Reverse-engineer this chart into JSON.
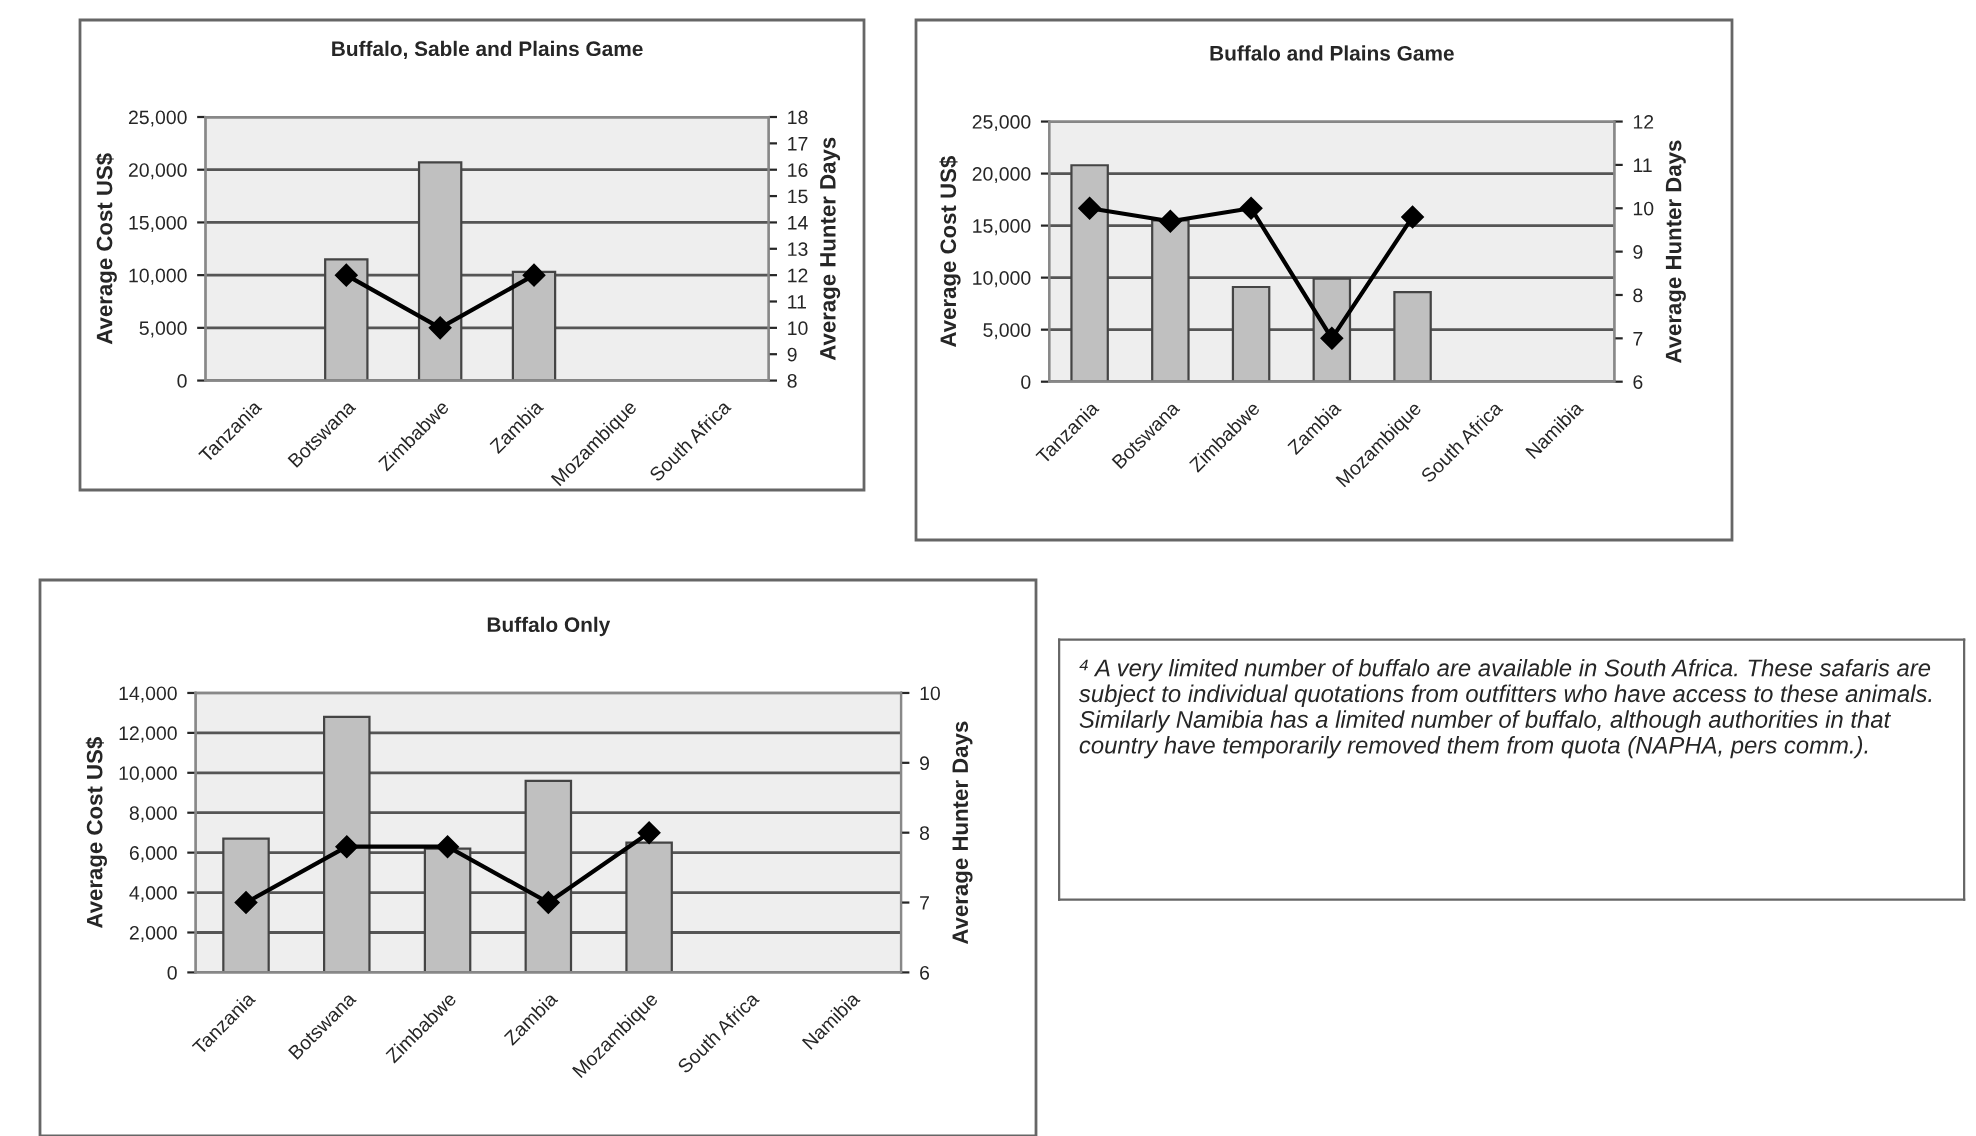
{
  "chart_data": [
    {
      "type": "bar",
      "title": "Buffalo, Sable and Plains Game",
      "categories": [
        "Tanzania",
        "Botswana",
        "Zimbabwe",
        "Zambia",
        "Mozambique",
        "South Africa"
      ],
      "series": [
        {
          "type": "bar",
          "color": "#c0c0c0",
          "values": [
            null,
            11500,
            20700,
            10300,
            null,
            null
          ]
        },
        {
          "type": "line",
          "axis": "y2",
          "color": "#000000",
          "values": [
            null,
            12,
            10,
            12,
            null,
            null
          ]
        }
      ],
      "ylabel": "Average Cost US$",
      "y2label": "Average Hunter Days",
      "ylim": [
        0,
        25000
      ],
      "yticks": [
        0,
        {
          "value": 5000,
          "label": "5,000"
        },
        {
          "value": 10000,
          "label": "10,000"
        },
        {
          "value": 15000,
          "label": "15,000"
        },
        {
          "value": 20000,
          "label": "20,000"
        },
        {
          "value": 25000,
          "label": "25,000"
        }
      ],
      "y2lim": [
        8,
        18
      ],
      "y2ticks": [
        8,
        9,
        10,
        11,
        12,
        13,
        14,
        15,
        16,
        17,
        18
      ],
      "grid": "y",
      "marker": "diamond"
    },
    {
      "type": "bar",
      "title": "Buffalo and Plains Game",
      "categories": [
        "Tanzania",
        "Botswana",
        "Zimbabwe",
        "Zambia",
        "Mozambique",
        "South Africa",
        "Namibia"
      ],
      "series": [
        {
          "type": "bar",
          "color": "#c0c0c0",
          "values": [
            20800,
            15500,
            9100,
            9900,
            8600,
            null,
            null
          ]
        },
        {
          "type": "line",
          "axis": "y2",
          "color": "#000000",
          "values": [
            10,
            9.7,
            10,
            7,
            9.8,
            null,
            null
          ]
        }
      ],
      "ylabel": "Average Cost US$",
      "y2label": "Average Hunter Days",
      "ylim": [
        0,
        25000
      ],
      "yticks": [
        0,
        {
          "value": 5000,
          "label": "5,000"
        },
        {
          "value": 10000,
          "label": "10,000"
        },
        {
          "value": 15000,
          "label": "15,000"
        },
        {
          "value": 20000,
          "label": "20,000"
        },
        {
          "value": 25000,
          "label": "25,000"
        }
      ],
      "y2lim": [
        6,
        12
      ],
      "y2ticks": [
        6,
        7,
        8,
        9,
        10,
        11,
        12
      ],
      "grid": "y",
      "marker": "diamond"
    },
    {
      "type": "bar",
      "title": "Buffalo Only",
      "categories": [
        "Tanzania",
        "Botswana",
        "Zimbabwe",
        "Zambia",
        "Mozambique",
        "South Africa",
        "Namibia"
      ],
      "series": [
        {
          "type": "bar",
          "color": "#c0c0c0",
          "values": [
            6700,
            12800,
            6200,
            9600,
            6500,
            null,
            null
          ]
        },
        {
          "type": "line",
          "axis": "y2",
          "color": "#000000",
          "values": [
            7,
            7.8,
            7.8,
            7,
            8,
            null,
            null
          ]
        }
      ],
      "ylabel": "Average Cost US$",
      "y2label": "Average Hunter Days",
      "ylim": [
        0,
        14000
      ],
      "yticks": [
        0,
        {
          "value": 2000,
          "label": "2,000"
        },
        {
          "value": 4000,
          "label": "4,000"
        },
        {
          "value": 6000,
          "label": "6,000"
        },
        {
          "value": 8000,
          "label": "8,000"
        },
        {
          "value": 10000,
          "label": "10,000"
        },
        {
          "value": 12000,
          "label": "12,000"
        },
        {
          "value": 14000,
          "label": "14,000"
        }
      ],
      "y2lim": [
        6,
        10
      ],
      "y2ticks": [
        6,
        7,
        8,
        9,
        10
      ],
      "grid": "y",
      "marker": "diamond"
    },
    {
      "type": "other",
      "annotations": [
        "⁴ A very limited number of buffalo are available in South Africa. These safaris are subject to individual quotations from outfitters who have access to these animals. Similarly Namibia has a limited number of buffalo, although authorities in that country have temporarily removed them from quota (NAPHA, pers comm.)."
      ]
    }
  ]
}
